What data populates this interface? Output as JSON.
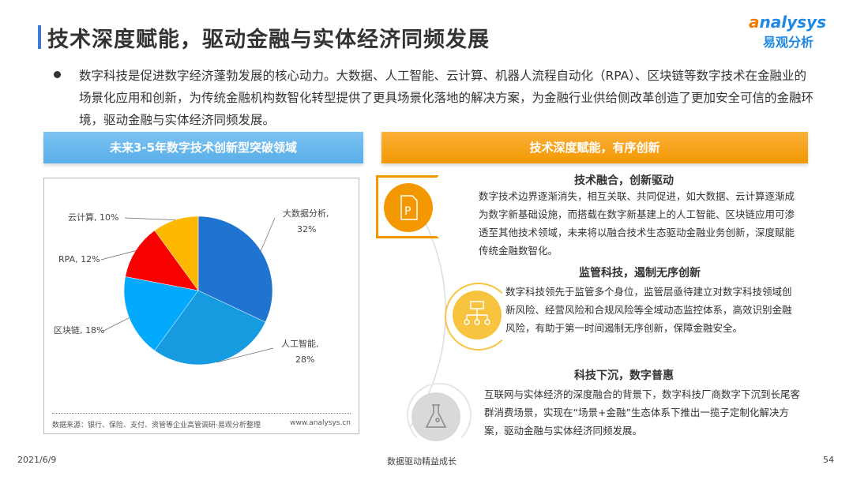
{
  "title": "技术深度赋能，驱动金融与实体经济同频发展",
  "logo": {
    "brand": "Analysys",
    "cn": "易观分析"
  },
  "intro": "数字科技是促进数字经济蓬勃发展的核心动力。大数据、人工智能、云计算、机器人流程自动化（RPA）、区块链等数字技术在金融业的场景化应用和创新，为传统金融机构数智化转型提供了更具场景化落地的解决方案，为金融行业供给侧改革创造了更加安全可信的金融环境，驱动金融与实体经济同频发展。",
  "left_header": "未来3-5年数字技术创新型突破领域",
  "right_header": "技术深度赋能，有序创新",
  "chart_data": {
    "type": "pie",
    "title": "",
    "slices": [
      {
        "label": "大数据分析",
        "value": 32,
        "display": "大数据分析,",
        "pct": "32%",
        "color": "#1f74d0"
      },
      {
        "label": "人工智能",
        "value": 28,
        "display": "人工智能,",
        "pct": "28%",
        "color": "#169be0"
      },
      {
        "label": "区块链",
        "value": 18,
        "display": "区块链, 18%",
        "color": "#03aafc"
      },
      {
        "label": "RPA",
        "value": 12,
        "display": "RPA, 12%",
        "color": "#f70000"
      },
      {
        "label": "云计算",
        "value": 10,
        "display": "云计算, 10%",
        "color": "#ffb800"
      }
    ]
  },
  "source": "数据来源：银行、保险、支付、资管等企业高管调研·易观分析整理",
  "source_url": "www.analysys.cn",
  "sections": [
    {
      "heading": "技术融合，创新驱动",
      "text": "数字技术边界逐渐消失，相互关联、共同促进，如大数据、云计算逐渐成为数字新基础设施，而搭载在数字新基建上的人工智能、区块链应用可渗透至其他技术领域，未来将以融合技术生态驱动金融业务创新，深度赋能传统金融数智化。",
      "icon": "document-p-icon",
      "color": "#f39800"
    },
    {
      "heading": "监管科技，遏制无序创新",
      "text": "数字科技领先于监管多个身位，监管层亟待建立对数字科技领域创新风险、经营风险和合规风险等全域动态监控体系，高效识别金融风险，有助于第一时间遏制无序创新，保障金融安全。",
      "icon": "hierarchy-icon",
      "color": "#f8c440"
    },
    {
      "heading": "科技下沉，数字普惠",
      "text": "互联网与实体经济的深度融合的背景下，数字科技厂商数字下沉到长尾客群消费场景，实现在“场景+金融”生态体系下推出一揽子定制化解决方案，驱动金融与实体经济同频发展。",
      "icon": "flask-icon",
      "color": "#d9d9d9"
    }
  ],
  "footer": {
    "date": "2021/6/9",
    "center": "数据驱动精益成长",
    "page": "54"
  }
}
